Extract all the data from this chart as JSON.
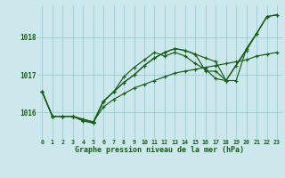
{
  "title": "Graphe pression niveau de la mer (hPa)",
  "background_color": "#cce8ec",
  "grid_color": "#99ccd4",
  "line_color": "#1a5c1a",
  "ylim": [
    1015.3,
    1018.85
  ],
  "yticks": [
    1016,
    1017,
    1018
  ],
  "x_ticks": [
    0,
    1,
    2,
    3,
    4,
    5,
    6,
    7,
    8,
    9,
    10,
    11,
    12,
    13,
    14,
    15,
    16,
    17,
    18,
    19,
    20,
    21,
    22,
    23
  ],
  "series": [
    [
      1016.55,
      1015.9,
      1015.9,
      1015.9,
      1015.82,
      1015.75,
      1016.15,
      1016.35,
      1016.5,
      1016.65,
      1016.75,
      1016.85,
      1016.95,
      1017.05,
      1017.1,
      1017.15,
      1017.2,
      1017.25,
      1017.3,
      1017.35,
      1017.4,
      1017.5,
      1017.55,
      1017.6
    ],
    [
      1016.55,
      1015.9,
      1015.9,
      1015.9,
      1015.82,
      1015.75,
      1016.3,
      1016.55,
      1016.95,
      1017.2,
      1017.4,
      1017.6,
      1017.5,
      1017.6,
      1017.5,
      1017.3,
      1017.15,
      1016.9,
      1016.85,
      1016.85,
      1017.7,
      1018.1,
      1018.55,
      1018.6
    ],
    [
      1016.55,
      1015.9,
      1015.9,
      1015.9,
      1015.78,
      1015.72,
      1016.3,
      1016.55,
      1016.8,
      1017.0,
      1017.25,
      1017.45,
      1017.6,
      1017.7,
      1017.65,
      1017.55,
      1017.1,
      1017.1,
      1016.85,
      null,
      null,
      1018.1,
      1018.55,
      null
    ],
    [
      1016.55,
      1015.9,
      1015.9,
      1015.9,
      1015.78,
      1015.72,
      1016.3,
      1016.55,
      1016.8,
      1017.0,
      1017.25,
      1017.45,
      1017.6,
      1017.7,
      1017.65,
      1017.55,
      1017.45,
      1017.35,
      1016.85,
      1017.25,
      1017.65,
      1018.1,
      1018.55,
      1018.6
    ]
  ]
}
